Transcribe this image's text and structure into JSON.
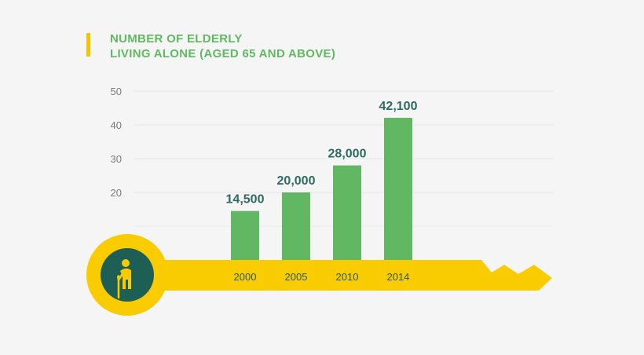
{
  "title_line1": "NUMBER OF ELDERLY",
  "title_line2": "LIVING ALONE (AGED 65 AND ABOVE)",
  "colors": {
    "bar": "#62b862",
    "key": "#f8cc00",
    "circle": "#1e5f55",
    "accent": "#f4c400",
    "data_label": "#2e6b60",
    "axis_text": "#7b7b7b"
  },
  "icon": "elderly-person-with-cane-icon",
  "chart_data": {
    "type": "bar",
    "title": "NUMBER OF ELDERLY LIVING ALONE (AGED 65 AND ABOVE)",
    "categories": [
      "2000",
      "2005",
      "2010",
      "2014"
    ],
    "values": [
      14500,
      20000,
      28000,
      42100
    ],
    "data_labels": [
      "14,500",
      "20,000",
      "28,000",
      "42,100"
    ],
    "yticks": [
      "50",
      "40",
      "30",
      "20"
    ],
    "ylim": [
      0,
      50000
    ],
    "xlabel": "",
    "ylabel": "",
    "grid": true,
    "legend": "none"
  }
}
